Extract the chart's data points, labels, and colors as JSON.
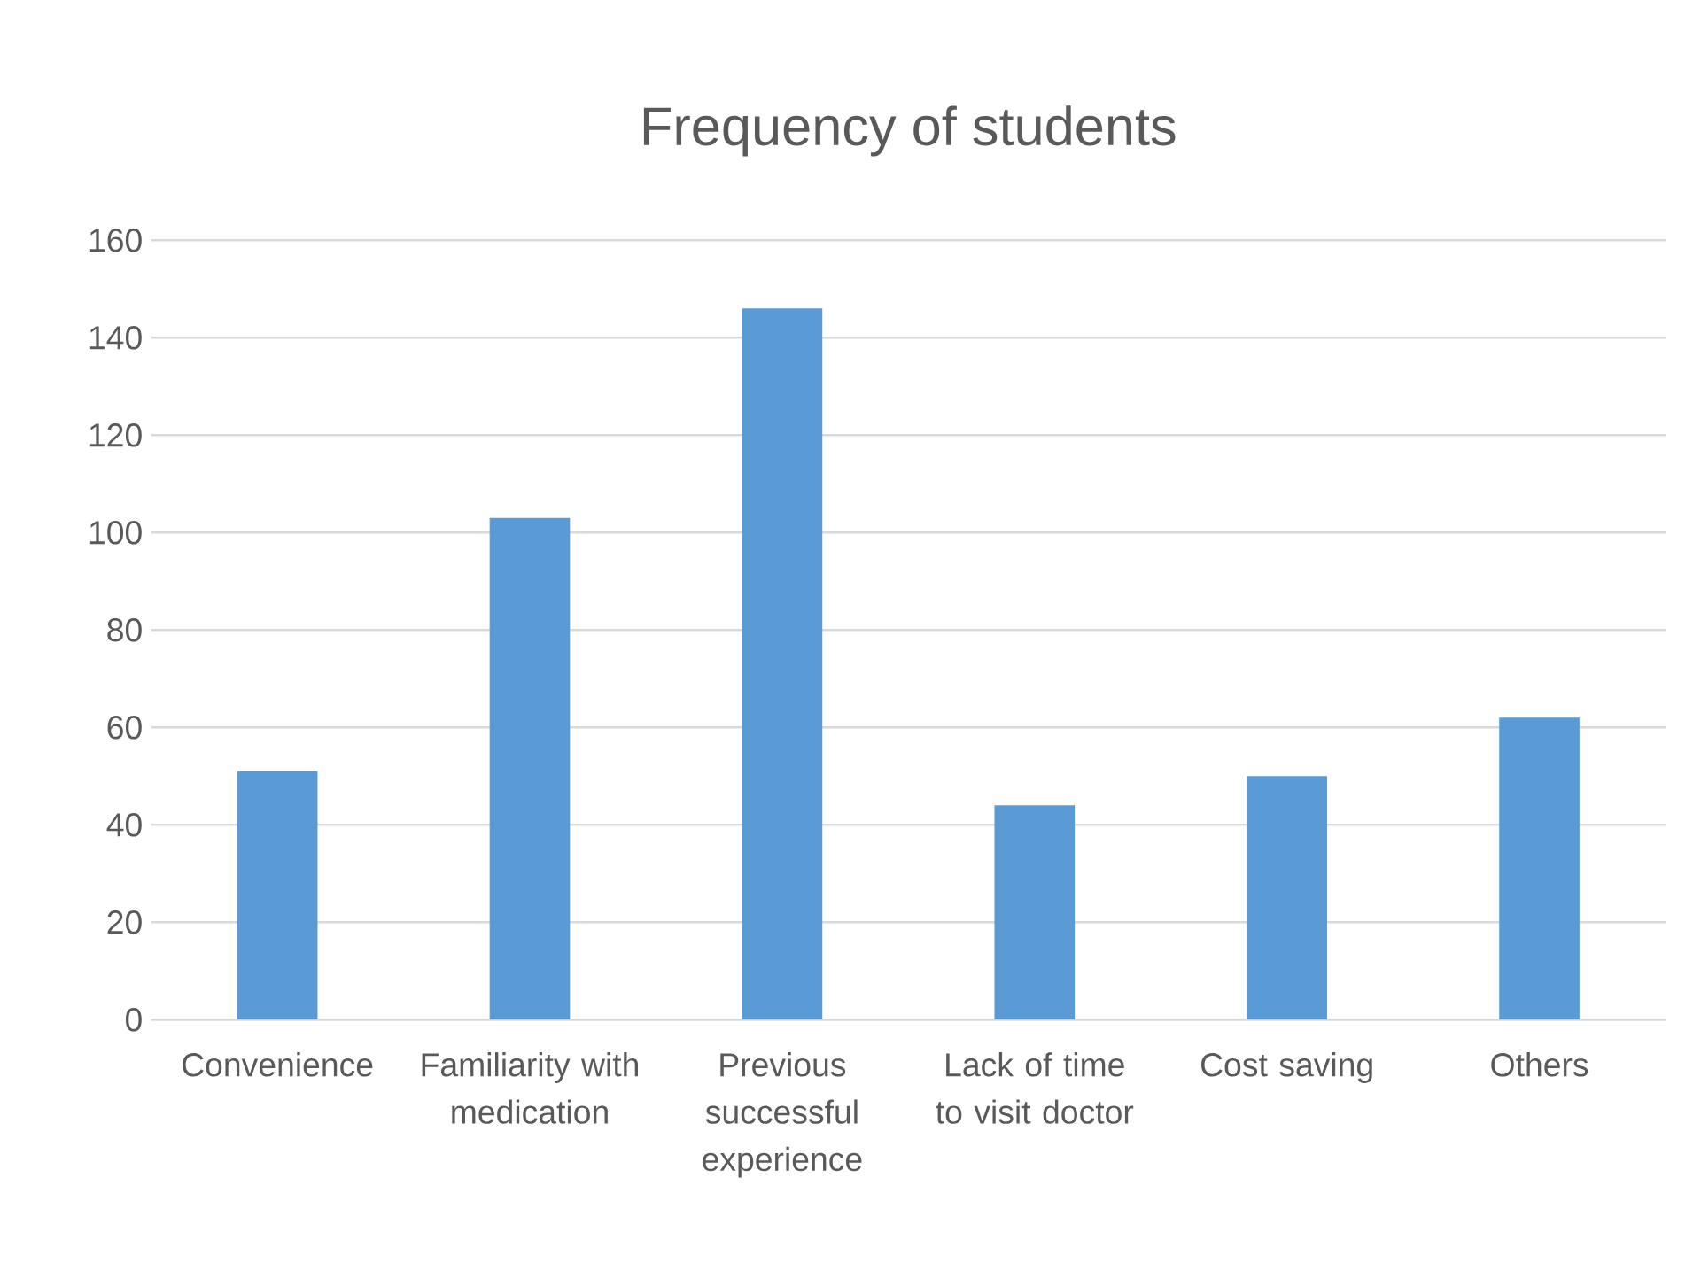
{
  "chart_data": {
    "type": "bar",
    "title": "Frequency of students",
    "categories": [
      "Convenience",
      "Familiarity with medication",
      "Previous successful experience",
      "Lack of time to visit doctor",
      "Cost saving",
      "Others"
    ],
    "values": [
      51,
      103,
      146,
      44,
      50,
      62
    ],
    "color": "#5b9bd5",
    "ylim": [
      0,
      160
    ],
    "yticks": [
      0,
      20,
      40,
      60,
      80,
      100,
      120,
      140,
      160
    ],
    "grid": "y"
  }
}
